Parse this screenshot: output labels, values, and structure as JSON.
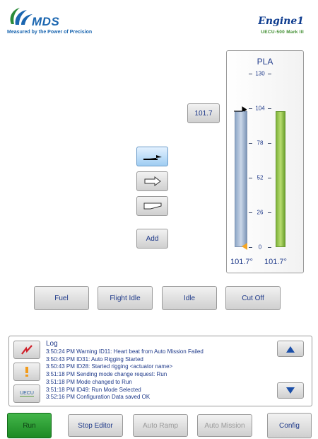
{
  "header": {
    "logo_text": "MDS",
    "logo_tagline": "Measured by the Power of Precision",
    "engine_title": "Engine1",
    "engine_subtitle": "UECU-500 Mark III"
  },
  "pla": {
    "title": "PLA",
    "setpoint_button": "101.7",
    "ticks": [
      "130",
      "104",
      "78",
      "52",
      "26",
      "0"
    ],
    "commanded_value": "101.7°",
    "actual_value": "101.7°",
    "commanded_level": 101.7,
    "actual_level": 101.7,
    "max": 130
  },
  "mode_icons": [
    {
      "name": "arrow-up-step-icon",
      "active": true
    },
    {
      "name": "arrow-right-outline-icon",
      "active": false
    },
    {
      "name": "wedge-outline-icon",
      "active": false
    }
  ],
  "add_button": "Add",
  "presets": [
    "Fuel",
    "Flight Idle",
    "Idle",
    "Cut Off"
  ],
  "log": {
    "title": "Log",
    "entries": [
      "3:50:24 PM Warning ID11: Heart beat from Auto Mission Failed",
      "3:50:43 PM ID31: Auto Rigging Started",
      "3:50:43 PM ID28: Started rigging <actuator name>",
      "3:51:18 PM Sending mode change request: Run",
      "3:51:18 PM Mode changed to Run",
      "3:51:18 PM ID49: Run Mode Selected",
      "3:52:16 PM Configuration Data saved OK"
    ],
    "filter_uecu_label": "UECU"
  },
  "footer": {
    "run": "Run",
    "stop_editor": "Stop Editor",
    "auto_ramp": "Auto Ramp",
    "auto_mission": "Auto Mission",
    "config": "Config"
  },
  "colors": {
    "accent": "#1f3a8a",
    "run_green": "#2aa033",
    "pla_commanded": "#9fb4d2",
    "pla_actual": "#94c84a"
  }
}
